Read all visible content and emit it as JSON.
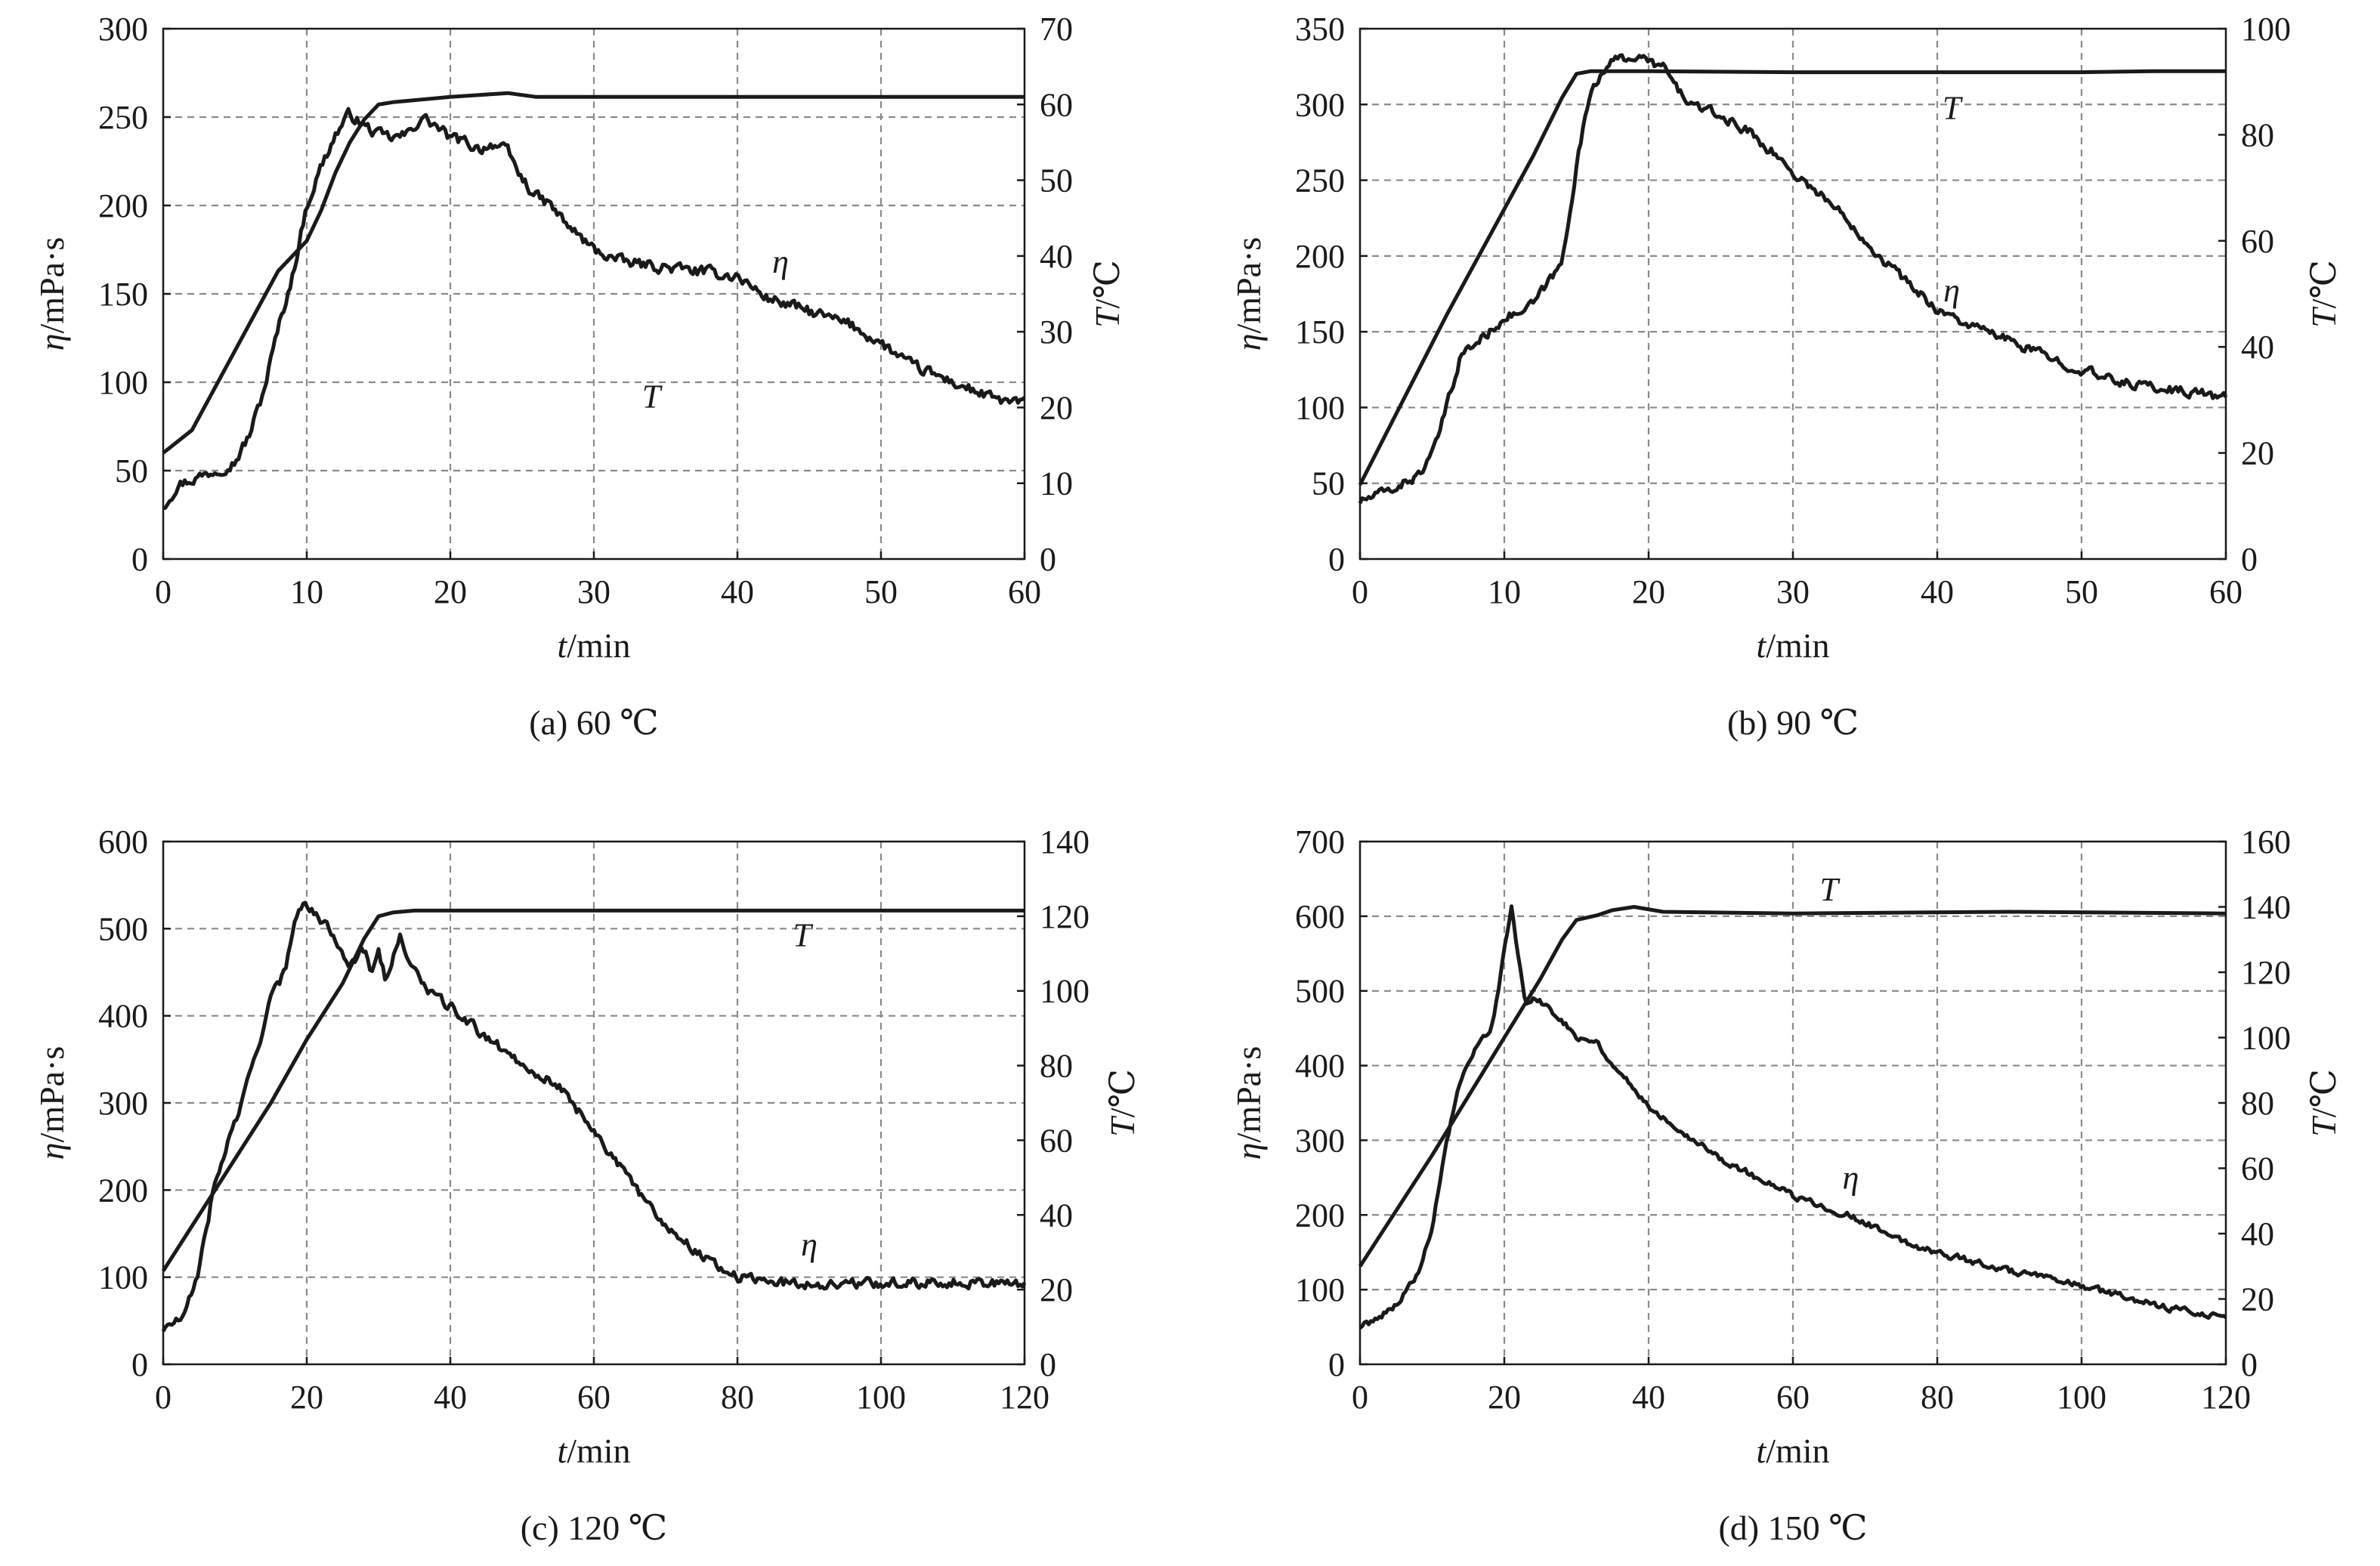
{
  "chart_data": [
    {
      "type": "line",
      "caption": "(a) 60 ℃",
      "xlabel": {
        "var": "t",
        "unit": "/min"
      },
      "ylabel_left": {
        "var": "η",
        "unit": "/mPa·s"
      },
      "ylabel_right": {
        "var": "T",
        "unit": "/℃"
      },
      "xlim": [
        0,
        60
      ],
      "ylim_left": [
        0,
        300
      ],
      "ylim_right": [
        0,
        70
      ],
      "xticks": [
        0,
        10,
        20,
        30,
        40,
        50,
        60
      ],
      "yticks_left": [
        0,
        50,
        100,
        150,
        200,
        250,
        300
      ],
      "yticks_right": [
        0,
        10,
        20,
        30,
        40,
        50,
        60,
        70
      ],
      "vgrid": [
        10,
        20,
        30,
        40,
        50
      ],
      "hgrid_left": [
        50,
        100,
        150,
        200,
        250
      ],
      "series": [
        {
          "name": "η",
          "axis": "left",
          "noise": 5,
          "label": "η",
          "label_at": [
            43,
            162
          ],
          "x": [
            0,
            1,
            3,
            5,
            6,
            7,
            8,
            9,
            10,
            11,
            12,
            13,
            14,
            15,
            16,
            17,
            18,
            19,
            20,
            21,
            22,
            23,
            24,
            25,
            26,
            27,
            28,
            30,
            32,
            35,
            38,
            40,
            42,
            45,
            48,
            50,
            52,
            55,
            58,
            60
          ],
          "y": [
            30,
            42,
            48,
            55,
            70,
            95,
            130,
            160,
            200,
            222,
            240,
            252,
            245,
            240,
            238,
            240,
            250,
            245,
            238,
            236,
            232,
            235,
            230,
            215,
            205,
            200,
            190,
            175,
            168,
            165,
            162,
            160,
            148,
            140,
            132,
            122,
            110,
            100,
            90,
            88
          ]
        },
        {
          "name": "T",
          "axis": "right",
          "noise": 0,
          "label": "T",
          "label_at": [
            34,
            20
          ],
          "x": [
            0,
            2,
            4,
            6,
            8,
            9,
            10,
            11,
            12,
            13,
            14,
            15,
            16,
            20,
            24,
            26,
            30,
            60
          ],
          "y": [
            14,
            17,
            24,
            31,
            38,
            40,
            42,
            46,
            51,
            55,
            58,
            60,
            60.3,
            61,
            61.5,
            61,
            61,
            61
          ]
        }
      ]
    },
    {
      "type": "line",
      "caption": "(b) 90 ℃",
      "xlabel": {
        "var": "t",
        "unit": "/min"
      },
      "ylabel_left": {
        "var": "η",
        "unit": "/mPa·s"
      },
      "ylabel_right": {
        "var": "T",
        "unit": "/℃"
      },
      "xlim": [
        0,
        60
      ],
      "ylim_left": [
        0,
        350
      ],
      "ylim_right": [
        0,
        100
      ],
      "xticks": [
        0,
        10,
        20,
        30,
        40,
        50,
        60
      ],
      "yticks_left": [
        0,
        50,
        100,
        150,
        200,
        250,
        300,
        350
      ],
      "yticks_right": [
        0,
        20,
        40,
        60,
        80,
        100
      ],
      "vgrid": [
        10,
        20,
        30,
        40,
        50
      ],
      "hgrid_left": [
        50,
        100,
        150,
        200,
        250,
        300
      ],
      "series": [
        {
          "name": "η",
          "axis": "left",
          "noise": 5,
          "label": "η",
          "label_at": [
            41,
            170
          ],
          "x": [
            0,
            2,
            4,
            5,
            6,
            7,
            8,
            9,
            10,
            11,
            12,
            13,
            14,
            15,
            16,
            17,
            18,
            19,
            20,
            21,
            22,
            23,
            25,
            27,
            29,
            30,
            32,
            34,
            36,
            38,
            40,
            42,
            44,
            46,
            48,
            50,
            52,
            54,
            56,
            58,
            60
          ],
          "y": [
            38,
            45,
            55,
            68,
            100,
            135,
            142,
            150,
            160,
            162,
            168,
            182,
            195,
            260,
            310,
            325,
            330,
            332,
            328,
            325,
            310,
            300,
            292,
            282,
            265,
            255,
            240,
            222,
            200,
            182,
            165,
            155,
            148,
            140,
            132,
            125,
            118,
            115,
            112,
            110,
            106
          ]
        },
        {
          "name": "T",
          "axis": "right",
          "noise": 0,
          "label": "T",
          "label_at": [
            41,
            83
          ],
          "x": [
            0,
            3,
            6,
            9,
            12,
            14,
            15,
            16,
            20,
            30,
            40,
            50,
            55,
            60
          ],
          "y": [
            14,
            30,
            46,
            61,
            76,
            87,
            91.5,
            92,
            92,
            91.8,
            91.8,
            91.8,
            92,
            92
          ]
        }
      ]
    },
    {
      "type": "line",
      "caption": "(c) 120 ℃",
      "xlabel": {
        "var": "t",
        "unit": "/min"
      },
      "ylabel_left": {
        "var": "η",
        "unit": "/mPa·s"
      },
      "ylabel_right": {
        "var": "T",
        "unit": "/℃"
      },
      "xlim": [
        0,
        120
      ],
      "ylim_left": [
        0,
        600
      ],
      "ylim_right": [
        0,
        140
      ],
      "xticks": [
        0,
        20,
        40,
        60,
        80,
        100,
        120
      ],
      "yticks_left": [
        0,
        100,
        200,
        300,
        400,
        500,
        600
      ],
      "yticks_right": [
        0,
        20,
        40,
        60,
        80,
        100,
        120,
        140
      ],
      "vgrid": [
        20,
        40,
        60,
        80,
        100
      ],
      "hgrid_left": [
        100,
        200,
        300,
        400,
        500
      ],
      "series": [
        {
          "name": "η",
          "axis": "left",
          "noise": 9,
          "label": "η",
          "label_at": [
            90,
            125
          ],
          "x": [
            0,
            3,
            5,
            7,
            9,
            11,
            13,
            15,
            17,
            18,
            19,
            20,
            21,
            22,
            24,
            26,
            28,
            29,
            30,
            31,
            33,
            35,
            38,
            40,
            45,
            50,
            55,
            60,
            65,
            70,
            75,
            80,
            85,
            90,
            100,
            110,
            120
          ],
          "y": [
            40,
            55,
            110,
            200,
            255,
            300,
            360,
            420,
            450,
            500,
            530,
            525,
            520,
            510,
            490,
            460,
            475,
            450,
            480,
            440,
            490,
            450,
            420,
            410,
            375,
            345,
            320,
            270,
            210,
            160,
            125,
            100,
            95,
            92,
            93,
            95,
            92
          ]
        },
        {
          "name": "T",
          "axis": "right",
          "noise": 0,
          "label": "T",
          "label_at": [
            89,
            112
          ],
          "x": [
            0,
            5,
            10,
            15,
            20,
            25,
            28,
            30,
            32,
            35,
            60,
            90,
            120
          ],
          "y": [
            25,
            40,
            55,
            70,
            87,
            102,
            114,
            120,
            121,
            121.5,
            121.5,
            121.5,
            121.5
          ]
        }
      ]
    },
    {
      "type": "line",
      "caption": "(d) 150 ℃",
      "xlabel": {
        "var": "t",
        "unit": "/min"
      },
      "ylabel_left": {
        "var": "η",
        "unit": "/mPa·s"
      },
      "ylabel_right": {
        "var": "T",
        "unit": "/℃"
      },
      "xlim": [
        0,
        120
      ],
      "ylim_left": [
        0,
        700
      ],
      "ylim_right": [
        0,
        160
      ],
      "xticks": [
        0,
        20,
        40,
        60,
        80,
        100,
        120
      ],
      "yticks_left": [
        0,
        100,
        200,
        300,
        400,
        500,
        600,
        700
      ],
      "yticks_right": [
        0,
        20,
        40,
        60,
        80,
        100,
        120,
        140,
        160
      ],
      "vgrid": [
        20,
        40,
        60,
        80,
        100
      ],
      "hgrid_left": [
        100,
        200,
        300,
        400,
        500,
        600
      ],
      "series": [
        {
          "name": "η",
          "axis": "left",
          "noise": 7,
          "label": "η",
          "label_at": [
            68,
            235
          ],
          "x": [
            0,
            2,
            5,
            8,
            10,
            12,
            14,
            16,
            18,
            19,
            20,
            21,
            22,
            23,
            24,
            26,
            28,
            30,
            33,
            35,
            38,
            40,
            45,
            50,
            55,
            60,
            65,
            70,
            75,
            80,
            90,
            100,
            110,
            115,
            120
          ],
          "y": [
            50,
            60,
            80,
            120,
            180,
            300,
            380,
            420,
            450,
            490,
            560,
            610,
            540,
            480,
            490,
            480,
            460,
            440,
            430,
            400,
            370,
            345,
            310,
            275,
            250,
            225,
            210,
            190,
            165,
            150,
            125,
            105,
            80,
            70,
            65
          ]
        },
        {
          "name": "T",
          "axis": "right",
          "noise": 0,
          "label": "T",
          "label_at": [
            65,
            142
          ],
          "x": [
            0,
            5,
            10,
            15,
            20,
            25,
            28,
            30,
            33,
            35,
            38,
            42,
            60,
            90,
            120
          ],
          "y": [
            30,
            47,
            64,
            82,
            100,
            118,
            130,
            136,
            137.5,
            139,
            140,
            138.5,
            138,
            138.5,
            138
          ]
        }
      ]
    }
  ]
}
